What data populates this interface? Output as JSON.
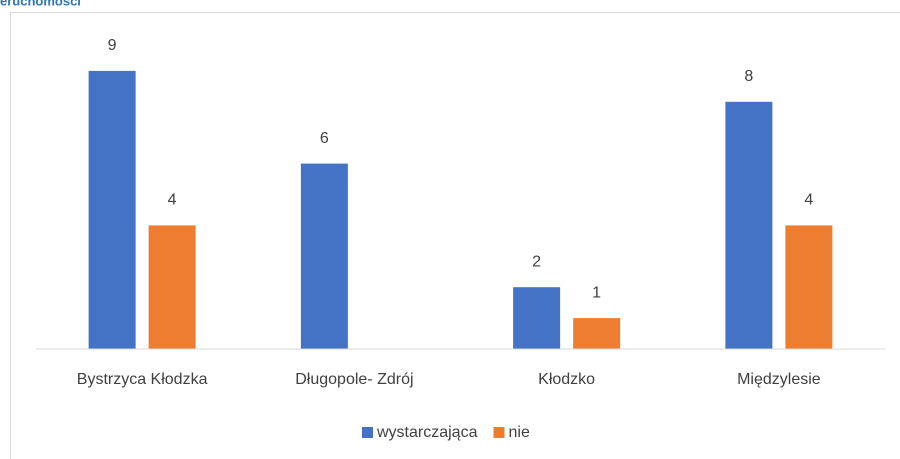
{
  "chart_data": {
    "type": "bar",
    "title": "eruchomości",
    "categories": [
      "Bystrzyca Kłodzka",
      "Długopole- Zdrój",
      "Kłodzko",
      "Międzylesie"
    ],
    "series": [
      {
        "name": "wystarczająca",
        "color": "#4472c4",
        "values": [
          9,
          6,
          2,
          8
        ]
      },
      {
        "name": "nie",
        "color": "#ed7d31",
        "values": [
          4,
          null,
          1,
          4
        ]
      }
    ],
    "ylim": [
      0,
      10
    ],
    "legend": "bottom"
  }
}
